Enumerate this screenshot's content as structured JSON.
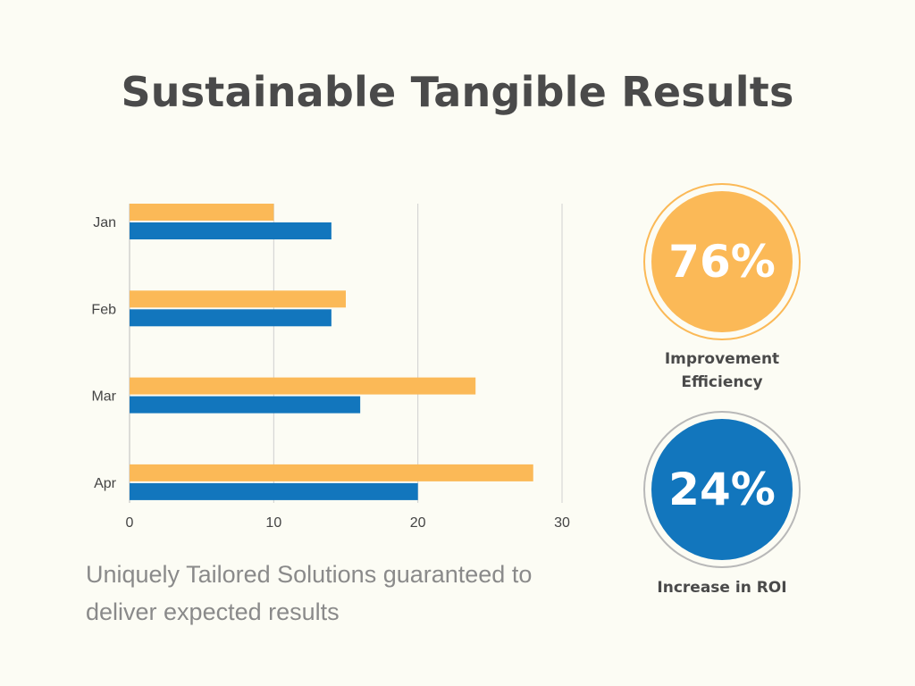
{
  "title": "Sustainable Tangible Results",
  "subtitle": "Uniquely Tailored Solutions guaranteed to deliver expected results",
  "stats": [
    {
      "value_text": "76%",
      "label": "Improvement Efficiency",
      "color": "#fbb957",
      "fraction": 0.76
    },
    {
      "value_text": "24%",
      "label": "Increase in ROI",
      "color": "#1276bd",
      "fraction": 0.24
    }
  ],
  "chart_data": {
    "type": "bar",
    "orientation": "horizontal",
    "categories": [
      "Jan",
      "Feb",
      "Mar",
      "Apr"
    ],
    "series": [
      {
        "values": [
          10,
          15,
          24,
          28
        ],
        "color": "#fbb957"
      },
      {
        "values": [
          14,
          14,
          16,
          20
        ],
        "color": "#1276bd"
      }
    ],
    "xlim": [
      0,
      30
    ],
    "x_ticks": [
      0,
      10,
      20,
      30
    ],
    "grid": true,
    "legend": "none"
  }
}
